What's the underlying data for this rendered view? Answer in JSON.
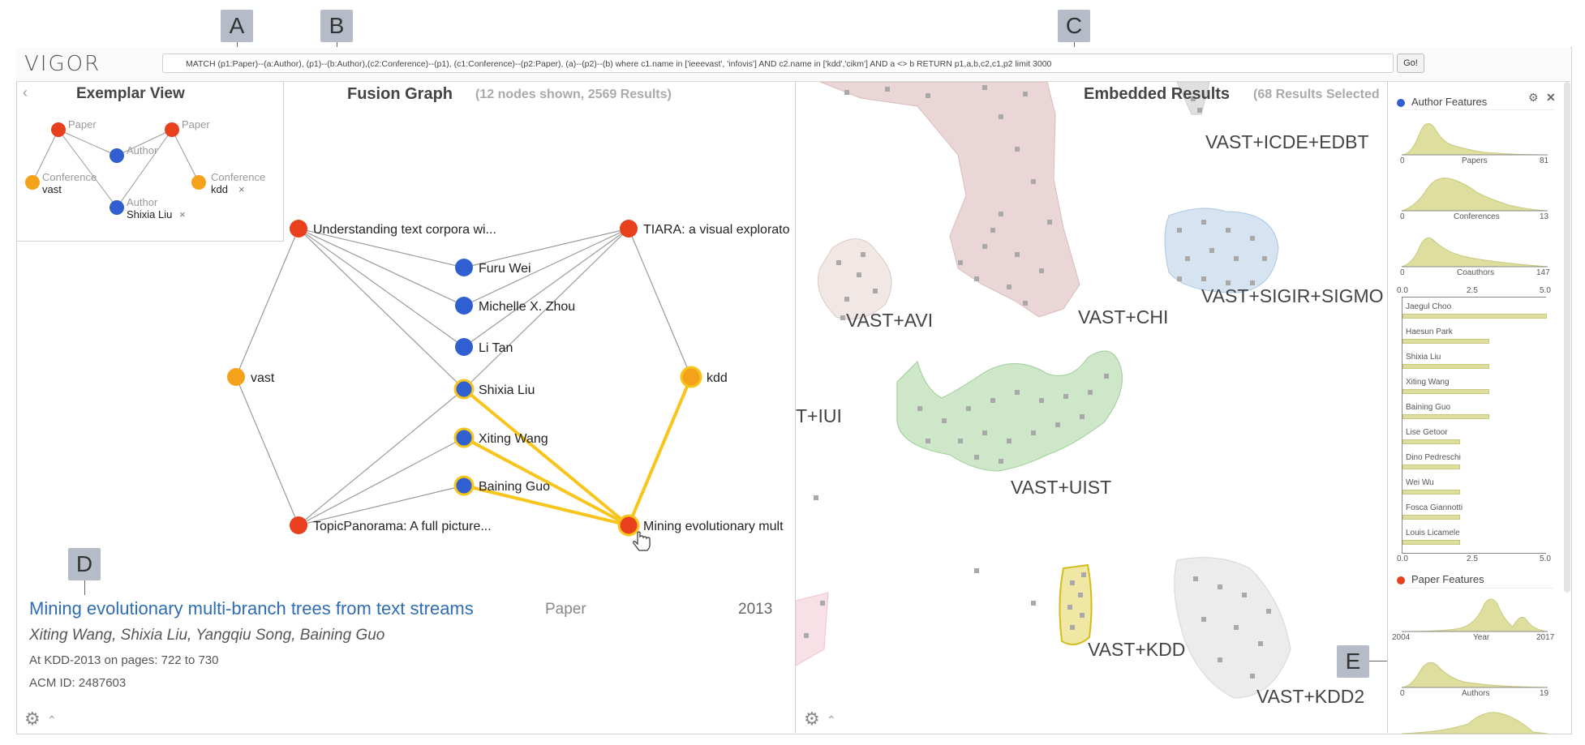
{
  "app": {
    "logo": "VIGOR",
    "go_label": "Go!"
  },
  "query": {
    "text": "MATCH (p1:Paper)--(a:Author), (p1)--(b:Author),(c2:Conference)--(p1), (c1:Conference)--(p2:Paper), (a)--(p2)--(b)  where c1.name in ['ieeevast', 'infovis'] AND c2.name in ['kdd','cikm'] AND a <> b  RETURN p1,a,b,c2,c1,p2 limit 3000"
  },
  "callouts": {
    "a": "A",
    "b": "B",
    "c": "C",
    "d": "D",
    "e": "E"
  },
  "exemplar": {
    "title": "Exemplar View",
    "collapse_icon": "chevron-left-icon",
    "nodes": [
      {
        "label": "Paper",
        "sub": "",
        "type": "paper"
      },
      {
        "label": "Paper",
        "sub": "",
        "type": "paper"
      },
      {
        "label": "Author",
        "sub": "",
        "type": "author"
      },
      {
        "label": "Conference",
        "sub": "vast",
        "type": "conference"
      },
      {
        "label": "Conference",
        "sub": "kdd",
        "type": "conference"
      },
      {
        "label": "Author",
        "sub": "Shixia Liu",
        "type": "author"
      }
    ],
    "remove_icon": "×"
  },
  "fusion": {
    "title": "Fusion Graph",
    "subtitle": "(12 nodes shown, 2569 Results)",
    "nodes": [
      {
        "label": "Understanding text corpora wi...",
        "type": "paper"
      },
      {
        "label": "TIARA: a visual explorato",
        "type": "paper"
      },
      {
        "label": "Furu Wei",
        "type": "author"
      },
      {
        "label": "Michelle X. Zhou",
        "type": "author"
      },
      {
        "label": "Li Tan",
        "type": "author"
      },
      {
        "label": "vast",
        "type": "conference"
      },
      {
        "label": "kdd",
        "type": "conference"
      },
      {
        "label": "Shixia Liu",
        "type": "author"
      },
      {
        "label": "Xiting Wang",
        "type": "author"
      },
      {
        "label": "Baining Guo",
        "type": "author"
      },
      {
        "label": "TopicPanorama: A full picture...",
        "type": "paper"
      },
      {
        "label": "Mining evolutionary mult",
        "type": "paper"
      }
    ]
  },
  "detail": {
    "title": "Mining evolutionary multi-branch trees from text streams",
    "type": "Paper",
    "year": "2013",
    "authors": "Xiting Wang, Shixia Liu, Yangqiu Song, Baining Guo",
    "venue": "At KDD-2013 on pages: 722 to 730",
    "acm": "ACM ID: 2487603"
  },
  "embedded": {
    "title": "Embedded Results",
    "subtitle": "(68 Results Selected",
    "clusters": [
      "VAST+ICDE+EDBT",
      "VAST+AVI",
      "VAST+CHI",
      "VAST+SIGIR+SIGMO",
      "T+IUI",
      "VAST+UIST",
      "VAST+KDD",
      "VAST+KDD2"
    ]
  },
  "features": {
    "author_head": "Author Features",
    "paper_head": "Paper Features",
    "settings_icon": "gear-icon",
    "close_icon": "close-icon",
    "papers": {
      "label": "Papers",
      "min": "0",
      "max": "81"
    },
    "conferences": {
      "label": "Conferences",
      "min": "0",
      "max": "13"
    },
    "coauthors": {
      "label": "Coauthors",
      "min": "0",
      "max": "147"
    },
    "bar_axis": [
      "0.0",
      "2.5",
      "5.0"
    ],
    "bars": [
      {
        "name": "Jaegul Choo",
        "value": 5.0
      },
      {
        "name": "Haesun Park",
        "value": 3.0
      },
      {
        "name": "Shixia Liu",
        "value": 3.0
      },
      {
        "name": "Xiting Wang",
        "value": 3.0
      },
      {
        "name": "Baining Guo",
        "value": 3.0
      },
      {
        "name": "Lise Getoor",
        "value": 2.0
      },
      {
        "name": "Dino Pedreschi",
        "value": 2.0
      },
      {
        "name": "Wei Wu",
        "value": 2.0
      },
      {
        "name": "Fosca Giannotti",
        "value": 2.0
      },
      {
        "name": "Louis Licamele",
        "value": 2.0
      }
    ],
    "year": {
      "label": "Year",
      "min": "2004",
      "max": "2017"
    },
    "authors": {
      "label": "Authors",
      "min": "0",
      "max": "19"
    }
  },
  "colors": {
    "paper": "#e8401c",
    "author": "#2f5fd0",
    "conference": "#f5a21b",
    "highlight": "#f7c51b",
    "feature_fill": "#dede9e"
  }
}
